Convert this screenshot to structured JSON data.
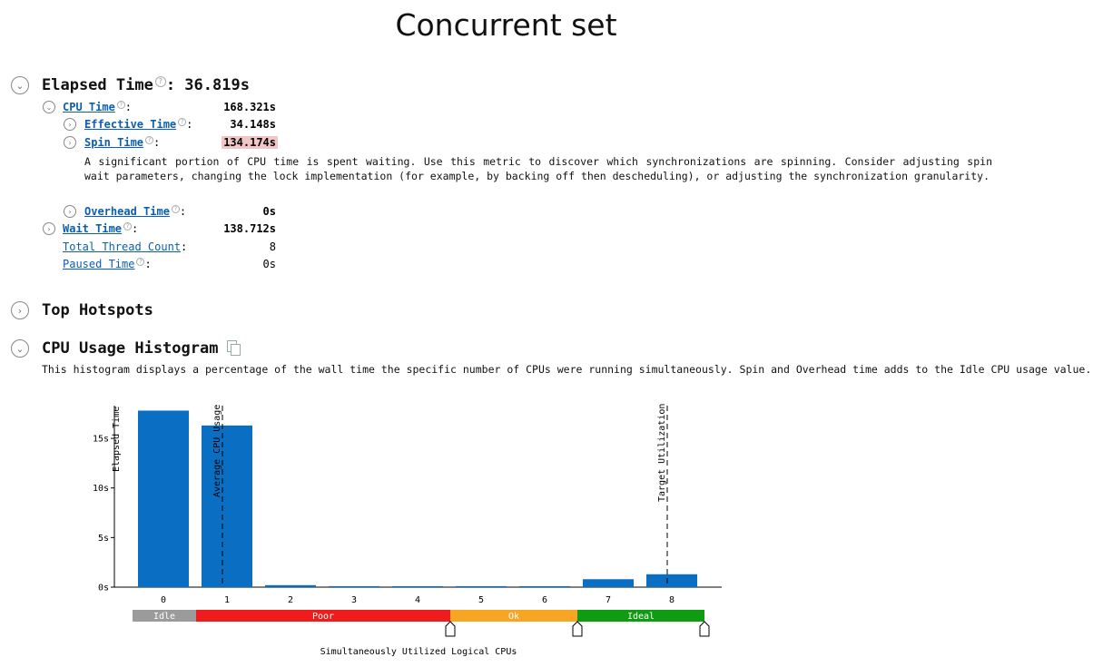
{
  "page": {
    "title": "Concurrent set"
  },
  "elapsed": {
    "label": "Elapsed Time",
    "value": ": 36.819s"
  },
  "metrics": {
    "cpu_time": {
      "label": "CPU Time",
      "value": "168.321s"
    },
    "effective_time": {
      "label": "Effective Time",
      "value": "34.148s"
    },
    "spin_time": {
      "label": "Spin Time",
      "value": "134.174s"
    },
    "spin_desc": "A significant portion of CPU time is spent waiting. Use this metric to discover which synchronizations are spinning. Consider adjusting spin wait parameters, changing the lock implementation (for example, by backing off then descheduling), or adjusting the synchronization granularity.",
    "overhead_time": {
      "label": "Overhead Time",
      "value": "0s"
    },
    "wait_time": {
      "label": "Wait Time",
      "value": "138.712s"
    },
    "thread_count": {
      "label": "Total Thread Count",
      "value": "8"
    },
    "paused_time": {
      "label": "Paused Time",
      "value": "0s"
    },
    "colon": ":"
  },
  "sections": {
    "top_hotspots": "Top Hotspots",
    "histogram": "CPU Usage Histogram",
    "histogram_desc": "This histogram displays a percentage of the wall time the specific number of CPUs were running simultaneously. Spin and Overhead time adds to the Idle CPU usage value."
  },
  "icons": {
    "expand": "chevron-expanded-icon",
    "collapse": "chevron-collapsed-icon",
    "help": "help-icon",
    "copy": "copy-icon"
  },
  "colors": {
    "bar": "#0a6fc2",
    "idle": "#9b9b9b",
    "poor": "#ee1c1c",
    "ok": "#f6a623",
    "ideal": "#0f9b12",
    "spin_highlight": "#f3c6c6",
    "link": "#0a5fb4"
  },
  "chart_data": {
    "type": "bar",
    "categories": [
      "0",
      "1",
      "2",
      "3",
      "4",
      "5",
      "6",
      "7",
      "8"
    ],
    "values": [
      17.8,
      16.3,
      0.2,
      0.1,
      0.1,
      0.1,
      0.1,
      0.8,
      1.3
    ],
    "ylabel": "Elapsed Time",
    "xlabel": "Simultaneously Utilized Logical CPUs",
    "yticks": [
      "0s",
      "5s",
      "10s",
      "15s"
    ],
    "ytick_values": [
      0,
      5,
      10,
      15
    ],
    "ylim": [
      0,
      18.3
    ],
    "markers": [
      {
        "label": "Average CPU Usage",
        "x": 1
      },
      {
        "label": "Target Utilization",
        "x": 8
      }
    ],
    "zones": [
      {
        "label": "Idle",
        "from": 0,
        "to": 1
      },
      {
        "label": "Poor",
        "from": 1,
        "to": 5
      },
      {
        "label": "Ok",
        "from": 5,
        "to": 7
      },
      {
        "label": "Ideal",
        "from": 7,
        "to": 9
      }
    ],
    "zone_handles": [
      5,
      7,
      9
    ]
  }
}
